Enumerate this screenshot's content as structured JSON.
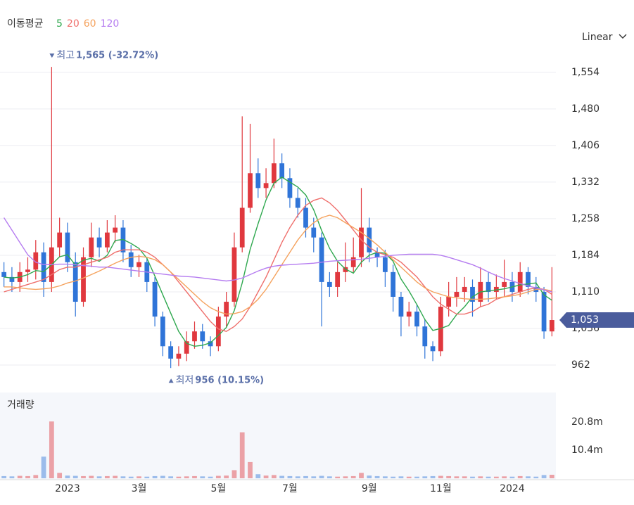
{
  "chart_data": {
    "type": "candlestick",
    "legend_title": "이동평균",
    "scale_mode": "Linear",
    "categories": [
      null,
      null,
      null,
      null,
      null,
      null,
      null,
      null,
      "2023",
      null,
      null,
      null,
      null,
      null,
      null,
      null,
      null,
      "3월",
      null,
      null,
      null,
      null,
      null,
      null,
      null,
      null,
      null,
      "5월",
      null,
      null,
      null,
      null,
      null,
      null,
      null,
      null,
      "7월",
      null,
      null,
      null,
      null,
      null,
      null,
      null,
      null,
      null,
      "9월",
      null,
      null,
      null,
      null,
      null,
      null,
      null,
      null,
      "11월",
      null,
      null,
      null,
      null,
      null,
      null,
      null,
      null,
      "2024",
      null,
      null,
      null,
      null,
      null
    ],
    "open": [
      1150,
      1140,
      1130,
      1150,
      1155,
      1190,
      1130,
      1200,
      1230,
      1170,
      1090,
      1180,
      1220,
      1200,
      1230,
      1240,
      1190,
      1160,
      1170,
      1130,
      1060,
      1000,
      975,
      985,
      1010,
      1030,
      1010,
      1000,
      1060,
      1090,
      1200,
      1280,
      1350,
      1320,
      1330,
      1370,
      1340,
      1300,
      1280,
      1240,
      1220,
      1130,
      1120,
      1150,
      1160,
      1180,
      1240,
      1190,
      1180,
      1150,
      1100,
      1060,
      1070,
      1040,
      1000,
      990,
      1080,
      1100,
      1110,
      1120,
      1090,
      1130,
      1110,
      1120,
      1130,
      1110,
      1150,
      1120,
      1110,
      1030
    ],
    "high": [
      1170,
      1160,
      1170,
      1180,
      1215,
      1210,
      1565,
      1260,
      1250,
      1190,
      1200,
      1250,
      1240,
      1255,
      1265,
      1255,
      1205,
      1185,
      1180,
      1140,
      1070,
      1010,
      1000,
      1030,
      1050,
      1045,
      1020,
      1080,
      1110,
      1230,
      1465,
      1450,
      1380,
      1360,
      1420,
      1390,
      1360,
      1320,
      1300,
      1260,
      1230,
      1150,
      1170,
      1210,
      1220,
      1320,
      1260,
      1200,
      1195,
      1165,
      1110,
      1090,
      1085,
      1055,
      1010,
      1100,
      1130,
      1140,
      1140,
      1135,
      1160,
      1150,
      1145,
      1175,
      1150,
      1170,
      1160,
      1140,
      1120,
      1160
    ],
    "low": [
      1120,
      1110,
      1110,
      1130,
      1135,
      1100,
      1110,
      1180,
      1150,
      1060,
      1080,
      1160,
      1180,
      1190,
      1210,
      1170,
      1140,
      1140,
      1110,
      1040,
      980,
      956,
      960,
      970,
      995,
      995,
      980,
      990,
      1040,
      1080,
      1190,
      1270,
      1300,
      1300,
      1320,
      1320,
      1280,
      1260,
      1220,
      1190,
      1040,
      1100,
      1100,
      1130,
      1150,
      1160,
      1170,
      1160,
      1120,
      1070,
      1020,
      1040,
      1020,
      975,
      970,
      980,
      1060,
      1080,
      1090,
      1060,
      1080,
      1090,
      1095,
      1100,
      1090,
      1100,
      1105,
      1090,
      1015,
      1020
    ],
    "close": [
      1140,
      1130,
      1150,
      1155,
      1190,
      1130,
      1200,
      1230,
      1170,
      1090,
      1180,
      1220,
      1200,
      1230,
      1240,
      1190,
      1160,
      1170,
      1130,
      1060,
      1000,
      975,
      985,
      1010,
      1030,
      1010,
      1000,
      1060,
      1090,
      1200,
      1280,
      1350,
      1320,
      1330,
      1370,
      1340,
      1300,
      1280,
      1240,
      1220,
      1130,
      1120,
      1150,
      1160,
      1180,
      1240,
      1190,
      1180,
      1150,
      1100,
      1060,
      1070,
      1040,
      1000,
      990,
      1080,
      1100,
      1110,
      1120,
      1090,
      1130,
      1110,
      1120,
      1130,
      1110,
      1150,
      1120,
      1110,
      1030,
      1053
    ],
    "up_color": "#e0383e",
    "down_color": "#2f74d8",
    "series": [
      {
        "name": "5",
        "color": "#2fa84f",
        "values": [
          1140,
          1138,
          1140,
          1145,
          1153,
          1151,
          1165,
          1181,
          1185,
          1164,
          1174,
          1178,
          1172,
          1184,
          1214,
          1216,
          1208,
          1198,
          1178,
          1142,
          1104,
          1067,
          1030,
          1006,
          1000,
          1002,
          1007,
          1022,
          1038,
          1072,
          1128,
          1196,
          1248,
          1296,
          1330,
          1342,
          1332,
          1322,
          1306,
          1276,
          1234,
          1198,
          1172,
          1156,
          1148,
          1170,
          1184,
          1190,
          1188,
          1172,
          1136,
          1112,
          1084,
          1054,
          1032,
          1036,
          1042,
          1064,
          1080,
          1100,
          1110,
          1112,
          1114,
          1116,
          1120,
          1124,
          1126,
          1128,
          1104,
          1093
        ]
      },
      {
        "name": "20",
        "color": "#ef6f6c",
        "values": [
          1110,
          1115,
          1120,
          1125,
          1130,
          1135,
          1145,
          1155,
          1160,
          1160,
          1165,
          1170,
          1175,
          1180,
          1190,
          1195,
          1195,
          1195,
          1190,
          1180,
          1165,
          1150,
          1130,
          1110,
          1090,
          1070,
          1050,
          1035,
          1030,
          1040,
          1055,
          1080,
          1110,
          1140,
          1175,
          1210,
          1240,
          1265,
          1285,
          1295,
          1300,
          1290,
          1275,
          1255,
          1235,
          1215,
          1200,
          1190,
          1185,
          1180,
          1170,
          1155,
          1140,
          1120,
          1100,
          1085,
          1075,
          1065,
          1065,
          1070,
          1080,
          1085,
          1095,
          1100,
          1105,
          1110,
          1115,
          1118,
          1115,
          1105
        ]
      },
      {
        "name": "60",
        "color": "#f5a25d",
        "values": [
          1120,
          1120,
          1118,
          1116,
          1115,
          1116,
          1118,
          1122,
          1128,
          1132,
          1138,
          1145,
          1152,
          1160,
          1168,
          1175,
          1180,
          1182,
          1180,
          1175,
          1165,
          1150,
          1135,
          1120,
          1105,
          1090,
          1078,
          1070,
          1065,
          1066,
          1070,
          1080,
          1095,
          1115,
          1140,
          1165,
          1190,
          1215,
          1235,
          1250,
          1260,
          1265,
          1260,
          1250,
          1240,
          1230,
          1218,
          1205,
          1190,
          1175,
          1160,
          1145,
          1130,
          1118,
          1110,
          1105,
          1100,
          1098,
          1096,
          1095,
          1095,
          1096,
          1098,
          1100,
          1102,
          1105,
          1110,
          1115,
          1115,
          1112
        ]
      },
      {
        "name": "120",
        "color": "#b57cf0",
        "values": [
          1260,
          1235,
          1210,
          1185,
          1170,
          1165,
          1165,
          1166,
          1166,
          1165,
          1163,
          1162,
          1160,
          1160,
          1158,
          1156,
          1154,
          1152,
          1150,
          1148,
          1146,
          1144,
          1142,
          1141,
          1140,
          1138,
          1136,
          1134,
          1132,
          1134,
          1138,
          1145,
          1152,
          1158,
          1162,
          1164,
          1165,
          1166,
          1167,
          1168,
          1170,
          1172,
          1173,
          1174,
          1175,
          1176,
          1178,
          1180,
          1182,
          1184,
          1185,
          1186,
          1186,
          1186,
          1186,
          1184,
          1180,
          1175,
          1170,
          1165,
          1158,
          1150,
          1143,
          1137,
          1132,
          1127,
          1122,
          1118,
          1114,
          1110
        ]
      }
    ],
    "ylim": [
      925,
      1615
    ],
    "yticks": [
      {
        "value": 962,
        "label": "962"
      },
      {
        "value": 1036,
        "label": "1,036"
      },
      {
        "value": 1110,
        "label": "1,110"
      },
      {
        "value": 1184,
        "label": "1,184"
      },
      {
        "value": 1258,
        "label": "1,258"
      },
      {
        "value": 1332,
        "label": "1,332"
      },
      {
        "value": 1406,
        "label": "1,406"
      },
      {
        "value": 1480,
        "label": "1,480"
      },
      {
        "value": 1554,
        "label": "1,554"
      }
    ],
    "grid": true,
    "current_price": {
      "value": 1053,
      "label": "1,053"
    },
    "annotations": [
      {
        "text": "최고",
        "value": 1565,
        "label": "1,565 (-32.72%)",
        "kind": "high",
        "index": 6
      },
      {
        "text": "최저",
        "value": 956,
        "label": "956 (10.15%)",
        "kind": "low",
        "index": 21
      }
    ],
    "volume_title": "거래량",
    "volume": [
      800000,
      700000,
      900000,
      800000,
      1200000,
      8000000,
      21000000,
      2000000,
      1000000,
      900000,
      800000,
      900000,
      700000,
      800000,
      900000,
      700000,
      600000,
      700000,
      600000,
      800000,
      900000,
      700000,
      600000,
      700000,
      800000,
      700000,
      600000,
      900000,
      1000000,
      3000000,
      17000000,
      6000000,
      1500000,
      1000000,
      1200000,
      900000,
      800000,
      700000,
      800000,
      700000,
      900000,
      700000,
      600000,
      700000,
      800000,
      2000000,
      1000000,
      800000,
      700000,
      600000,
      700000,
      600000,
      600000,
      700000,
      800000,
      900000,
      800000,
      700000,
      700000,
      600000,
      700000,
      600000,
      600000,
      700000,
      600000,
      800000,
      700000,
      600000,
      1200000,
      1300000
    ],
    "volume_ylim": [
      0,
      31200000
    ],
    "volume_yticks": [
      {
        "value": 10400000,
        "label": "10.4m"
      },
      {
        "value": 20800000,
        "label": "20.8m"
      }
    ]
  }
}
